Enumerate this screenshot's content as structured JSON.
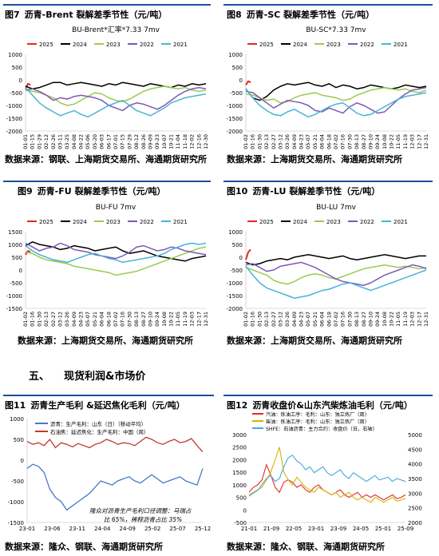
{
  "figures": [
    {
      "number": "图7",
      "title": "沥青-Brent 裂解差季节性（元/吨）",
      "source": "数据来源：钢联、上海期货交易所、海通期货研究所"
    },
    {
      "number": "图8",
      "title": "沥青-SC 裂解差季节性（元/吨）",
      "source": "数据来源：上海期货交易所、海通期货研究所"
    },
    {
      "number": "图9",
      "title": "沥青-FU 裂解差季节性（元/吨）",
      "source": "数据来源：上海期货交易所、海通期货研究所"
    },
    {
      "number": "图10",
      "title": "沥青-LU 裂解差季节性（元/吨）",
      "source": "数据来源：上海期货交易所、海通期货研究所"
    },
    {
      "number": "图11",
      "title": "沥青生产毛利 &延迟焦化毛利（元/吨）",
      "source": "数据来源：隆众、钢联、海通期货研究所"
    },
    {
      "number": "图12",
      "title": "沥青收盘价&山东汽柴炼油毛利（元/吨）",
      "source": "数据来源：隆众、钢联、海通期货研究所"
    }
  ],
  "section": {
    "number": "五、",
    "title": "现货利润&市场价"
  },
  "colors": {
    "y2025": "#e8262a",
    "y2024": "#000000",
    "y2023": "#9acb4f",
    "y2022": "#7e58b8",
    "y2021": "#47b4d6",
    "rule": "#1f4e9c"
  },
  "chart_data": [
    {
      "type": "line",
      "title": "BU-Brent*汇率*7.33 7mv",
      "ylim": [
        -2000,
        1000
      ],
      "yticks": [
        "1000",
        "500",
        "0",
        "-500",
        "-1000",
        "-1500",
        "-2000"
      ],
      "xticks": [
        "01-01",
        "01-15",
        "01-29",
        "02-12",
        "02-26",
        "03-11",
        "03-25",
        "04-08",
        "04-22",
        "05-06",
        "05-20",
        "06-03",
        "06-17",
        "07-01",
        "07-15",
        "07-29",
        "08-12",
        "08-26",
        "09-09",
        "09-23",
        "10-07",
        "10-21",
        "11-04",
        "11-18",
        "12-02",
        "12-16",
        "12-30"
      ],
      "series": [
        {
          "name": "2025",
          "values": [
            -350,
            -150,
            -200
          ]
        },
        {
          "name": "2024",
          "values": [
            -250,
            -350,
            -300,
            -200,
            -100,
            -100,
            -200,
            -150,
            -100,
            -150,
            -200,
            -250,
            -150,
            -200,
            -100,
            -150,
            -200,
            -250,
            -150,
            -200,
            -250,
            -300,
            -200,
            -250,
            -150,
            -200,
            -150
          ]
        },
        {
          "name": "2023",
          "values": [
            -400,
            -450,
            -500,
            -600,
            -700,
            -900,
            -1000,
            -950,
            -800,
            -650,
            -500,
            -550,
            -700,
            -800,
            -850,
            -750,
            -600,
            -450,
            -350,
            -300,
            -250,
            -300,
            -350,
            -300,
            -400,
            -450,
            -400
          ]
        },
        {
          "name": "2022",
          "values": [
            -400,
            -350,
            -450,
            -600,
            -800,
            -700,
            -750,
            -650,
            -600,
            -650,
            -700,
            -800,
            -1000,
            -1100,
            -1200,
            -1000,
            -900,
            -950,
            -1050,
            -1150,
            -1000,
            -800,
            -600,
            -450,
            -350,
            -300,
            -350
          ]
        },
        {
          "name": "2021",
          "values": [
            -300,
            -600,
            -900,
            -1100,
            -1250,
            -1400,
            -1300,
            -1200,
            -1350,
            -1450,
            -1300,
            -1150,
            -1000,
            -900,
            -800,
            -1000,
            -1200,
            -1300,
            -1400,
            -1250,
            -1100,
            -900,
            -800,
            -700,
            -650,
            -600,
            -550
          ]
        }
      ]
    },
    {
      "type": "line",
      "title": "BU-SC*7.33 7mv",
      "ylim": [
        -2000,
        1000
      ],
      "yticks": [
        "1000",
        "500",
        "0",
        "-500",
        "-1000",
        "-1500",
        "-2000"
      ],
      "xticks": [
        "01-02",
        "01-16",
        "01-30",
        "02-13",
        "02-27",
        "03-12",
        "03-26",
        "04-09",
        "04-23",
        "05-07",
        "05-21",
        "06-04",
        "06-18",
        "07-02",
        "07-16",
        "07-30",
        "08-13",
        "08-27",
        "09-10",
        "09-24",
        "10-08",
        "10-22",
        "11-05",
        "11-19",
        "12-03",
        "12-17",
        "12-31"
      ],
      "series": [
        {
          "name": "2025",
          "values": [
            -200,
            -50,
            -100
          ]
        },
        {
          "name": "2024",
          "values": [
            -350,
            -700,
            -800,
            -650,
            -400,
            -250,
            -150,
            -200,
            -150,
            -100,
            -200,
            -250,
            -150,
            -300,
            -200,
            -250,
            -350,
            -300,
            -200,
            -250,
            -300,
            -350,
            -300,
            -200,
            -250,
            -300,
            -250
          ]
        },
        {
          "name": "2023",
          "values": [
            -550,
            -600,
            -700,
            -800,
            -750,
            -900,
            -850,
            -700,
            -600,
            -550,
            -500,
            -600,
            -650,
            -700,
            -800,
            -750,
            -600,
            -500,
            -400,
            -350,
            -300,
            -350,
            -400,
            -350,
            -450,
            -500,
            -400
          ]
        },
        {
          "name": "2022",
          "values": [
            -450,
            -500,
            -700,
            -900,
            -1100,
            -950,
            -800,
            -850,
            -900,
            -1000,
            -1200,
            -1250,
            -1100,
            -1200,
            -1300,
            -1050,
            -900,
            -1000,
            -1150,
            -1300,
            -1250,
            -1000,
            -750,
            -550,
            -400,
            -350,
            -300
          ]
        },
        {
          "name": "2021",
          "values": [
            -350,
            -700,
            -1000,
            -1200,
            -1350,
            -1400,
            -1250,
            -1150,
            -1300,
            -1450,
            -1350,
            -1200,
            -1050,
            -950,
            -900,
            -1100,
            -1300,
            -1400,
            -1350,
            -1200,
            -1050,
            -900,
            -750,
            -650,
            -600,
            -550,
            -500
          ]
        }
      ]
    },
    {
      "type": "line",
      "title": "BU-FU 7mv",
      "ylim": [
        -1500,
        1500
      ],
      "yticks": [
        "1500",
        "1000",
        "500",
        "0",
        "-500",
        "-1000",
        "-1500"
      ],
      "xticks": [
        "01-02",
        "01-16",
        "01-30",
        "02-13",
        "02-27",
        "03-12",
        "03-26",
        "04-09",
        "04-23",
        "05-07",
        "05-21",
        "06-04",
        "06-18",
        "07-02",
        "07-16",
        "07-30",
        "08-13",
        "08-27",
        "09-10",
        "09-24",
        "10-08",
        "10-22",
        "11-05",
        "11-19",
        "12-03",
        "12-17",
        "12-31"
      ],
      "series": [
        {
          "name": "2025",
          "values": [
            600,
            750,
            700
          ]
        },
        {
          "name": "2024",
          "values": [
            950,
            1100,
            1000,
            950,
            900,
            800,
            850,
            950,
            900,
            850,
            750,
            800,
            850,
            900,
            750,
            650,
            700,
            750,
            650,
            550,
            500,
            450,
            400,
            350,
            450,
            500,
            550
          ]
        },
        {
          "name": "2023",
          "values": [
            700,
            650,
            500,
            400,
            350,
            300,
            250,
            150,
            100,
            50,
            0,
            -50,
            -100,
            -200,
            -150,
            -100,
            -50,
            50,
            150,
            250,
            350,
            450,
            550,
            650,
            750,
            850,
            900
          ]
        },
        {
          "name": "2022",
          "values": [
            1050,
            900,
            750,
            850,
            900,
            1050,
            950,
            800,
            750,
            700,
            600,
            550,
            500,
            450,
            550,
            700,
            900,
            950,
            850,
            750,
            800,
            900,
            850,
            750,
            700,
            650,
            600
          ]
        },
        {
          "name": "2021",
          "values": [
            950,
            750,
            600,
            500,
            400,
            350,
            300,
            400,
            500,
            600,
            650,
            550,
            450,
            400,
            300,
            350,
            400,
            450,
            500,
            550,
            650,
            800,
            900,
            1000,
            1050,
            1000,
            1050
          ]
        }
      ]
    },
    {
      "type": "line",
      "title": "BU-LU 7mv",
      "ylim": [
        -2000,
        1000
      ],
      "yticks": [
        "1000",
        "500",
        "0",
        "-500",
        "-1000",
        "-1500",
        "-2000"
      ],
      "xticks": [
        "01-02",
        "01-16",
        "01-30",
        "02-13",
        "02-27",
        "03-12",
        "03-26",
        "04-09",
        "04-23",
        "05-07",
        "05-21",
        "06-04",
        "06-18",
        "07-02",
        "07-16",
        "07-30",
        "08-13",
        "08-27",
        "09-10",
        "09-24",
        "10-08",
        "10-22",
        "11-05",
        "11-19",
        "12-03",
        "12-17",
        "12-31"
      ],
      "series": [
        {
          "name": "2025",
          "values": [
            -100,
            200,
            300
          ]
        },
        {
          "name": "2024",
          "values": [
            -200,
            -300,
            -250,
            -150,
            -100,
            -50,
            -100,
            0,
            50,
            100,
            50,
            0,
            -50,
            0,
            50,
            -50,
            -100,
            -50,
            0,
            50,
            100,
            50,
            0,
            -50,
            0,
            50,
            50
          ]
        },
        {
          "name": "2023",
          "values": [
            -400,
            -500,
            -600,
            -700,
            -900,
            -1000,
            -1050,
            -950,
            -800,
            -700,
            -650,
            -700,
            -800,
            -850,
            -750,
            -650,
            -550,
            -450,
            -400,
            -350,
            -300,
            -350,
            -400,
            -350,
            -400,
            -450,
            -400
          ]
        },
        {
          "name": "2022",
          "values": [
            -300,
            -250,
            -400,
            -550,
            -500,
            -350,
            -300,
            -250,
            -200,
            -300,
            -400,
            -550,
            -700,
            -850,
            -950,
            -1000,
            -1050,
            -1100,
            -1000,
            -850,
            -700,
            -600,
            -500,
            -400,
            -300,
            -350,
            -450
          ]
        },
        {
          "name": "2021",
          "values": [
            -350,
            -700,
            -1000,
            -1200,
            -1300,
            -1400,
            -1500,
            -1600,
            -1550,
            -1500,
            -1400,
            -1300,
            -1250,
            -1150,
            -1050,
            -1000,
            -1100,
            -1200,
            -1300,
            -1200,
            -1100,
            -1000,
            -900,
            -800,
            -700,
            -600,
            -500
          ]
        }
      ]
    },
    {
      "type": "line",
      "ylim": [
        -1500,
        1000
      ],
      "yticks": [
        "1000",
        "500",
        "0",
        "-500",
        "-1000",
        "-1500"
      ],
      "xticks": [
        "23-01",
        "23-06",
        "23-11",
        "24-04",
        "24-09",
        "25-02",
        "25-07",
        "25-12"
      ],
      "series": [
        {
          "name": "沥青：生产毛利：山东（日）（移动平均）",
          "values": [
            -200,
            -100,
            -150,
            -300,
            -700,
            -900,
            -1000,
            -1200,
            -1100,
            -1000,
            -900,
            -800,
            -650,
            -500,
            -550,
            -600,
            -500,
            -450,
            -400,
            -500,
            -550,
            -450,
            -350,
            -450,
            -550,
            -500,
            -450,
            -400,
            -500,
            -550,
            -600,
            -200
          ]
        },
        {
          "name": "石油焦：延迟焦化：生产毛利：中国（周）",
          "values": [
            450,
            380,
            420,
            350,
            500,
            300,
            420,
            380,
            320,
            400,
            350,
            300,
            380,
            420,
            500,
            450,
            380,
            420,
            400,
            350,
            450,
            550,
            500,
            420,
            380,
            450,
            500,
            420,
            450,
            520,
            350,
            200
          ]
        }
      ],
      "annotation": [
        "隆众对沥青生产毛利口径调整：马瑞占",
        "比 65%，稀释沥青占比 35%"
      ]
    },
    {
      "type": "line",
      "ylim_left": [
        -500,
        3000
      ],
      "ylim_right": [
        2000,
        5000
      ],
      "yticks_left": [
        "3000",
        "2500",
        "2000",
        "1500",
        "1000",
        "500",
        "0",
        "-500"
      ],
      "yticks_right": [
        "5000",
        "4500",
        "4000",
        "3500",
        "3000",
        "2500",
        "2000"
      ],
      "xticks": [
        "21-01",
        "21-09",
        "22-05",
        "23-01",
        "23-09",
        "24-05",
        "25-01",
        "25-09"
      ],
      "series": [
        {
          "name": "汽油：炼油工序：毛利：山东：独立炼厂（周）",
          "axis": "left",
          "values": [
            700,
            900,
            1000,
            1200,
            1800,
            1400,
            900,
            700,
            1100,
            1200,
            1100,
            900,
            1000,
            800,
            700,
            900,
            1000,
            800,
            700,
            600,
            700,
            800,
            600,
            500,
            600,
            700,
            500,
            600,
            500,
            600,
            500,
            400,
            500,
            600,
            450,
            500,
            600
          ]
        },
        {
          "name": "柴油：炼油工序：毛利：山东：独立炼厂（周）",
          "axis": "left",
          "values": [
            600,
            700,
            800,
            900,
            1200,
            1500,
            2000,
            2500,
            1500,
            1200,
            1000,
            1300,
            1100,
            900,
            800,
            700,
            900,
            800,
            700,
            600,
            700,
            500,
            600,
            700,
            500,
            400,
            500,
            400,
            300,
            500,
            400,
            300,
            400,
            500,
            350,
            400,
            450
          ]
        },
        {
          "name": "SHFE：石油沥青：主力合约：收盘价（日，右轴）",
          "axis": "right",
          "values": [
            2900,
            3000,
            3100,
            3300,
            3500,
            3600,
            3400,
            3500,
            3900,
            4200,
            4300,
            4100,
            4000,
            3800,
            3900,
            3700,
            3800,
            3900,
            3700,
            3600,
            3700,
            3800,
            3600,
            3500,
            3700,
            3600,
            3500,
            3400,
            3500,
            3600,
            3450,
            3500,
            3550,
            3400,
            3500,
            3450,
            3400
          ]
        }
      ]
    }
  ]
}
